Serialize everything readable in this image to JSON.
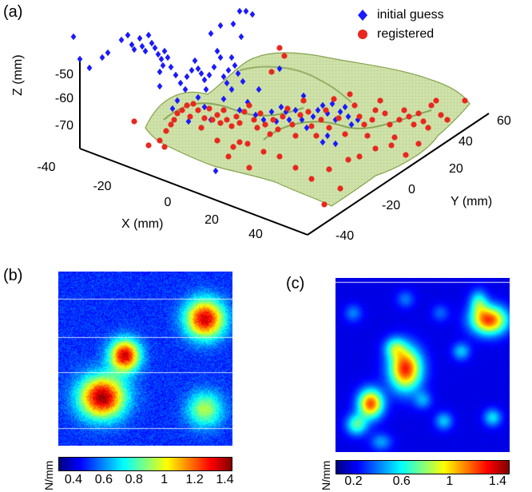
{
  "chart_data": [
    {
      "type": "scatter",
      "panel": "(a)",
      "projection": "3d",
      "xlabel": "X (mm)",
      "ylabel": "Y (mm)",
      "zlabel": "Z (mm)",
      "x_ticks": [
        "-40",
        "-20",
        "0",
        "20",
        "40"
      ],
      "y_ticks": [
        "-40",
        "-20",
        "0",
        "20",
        "40",
        "60"
      ],
      "z_ticks": [
        "-50",
        "-60",
        "-70"
      ],
      "xlim": [
        -45,
        50
      ],
      "ylim": [
        -45,
        60
      ],
      "zlim": [
        -75,
        -45
      ],
      "surface": "tissue surface mesh (green)",
      "legend": [
        {
          "name": "initial guess",
          "marker": "diamond",
          "color": "#1a1aff"
        },
        {
          "name": "registered",
          "marker": "circle",
          "color": "#e8281e"
        }
      ]
    },
    {
      "type": "heatmap",
      "panel": "(b)",
      "colorbar_label": "N/mm",
      "colorbar_ticks": [
        "0.4",
        "0.6",
        "0.8",
        "1",
        "1.2",
        "1.4"
      ],
      "clim": [
        0.3,
        1.45
      ],
      "colormap": "jet"
    },
    {
      "type": "heatmap",
      "panel": "(c)",
      "colorbar_label": "N/mm",
      "colorbar_ticks": [
        "0.2",
        "0.6",
        "1",
        "1.4"
      ],
      "clim": [
        0.05,
        1.5
      ],
      "colormap": "jet"
    }
  ],
  "colors": {
    "initial": "#1a1aff",
    "registered": "#e8281e",
    "surface_fill": "#c9dea0",
    "surface_line": "#8fae54"
  }
}
